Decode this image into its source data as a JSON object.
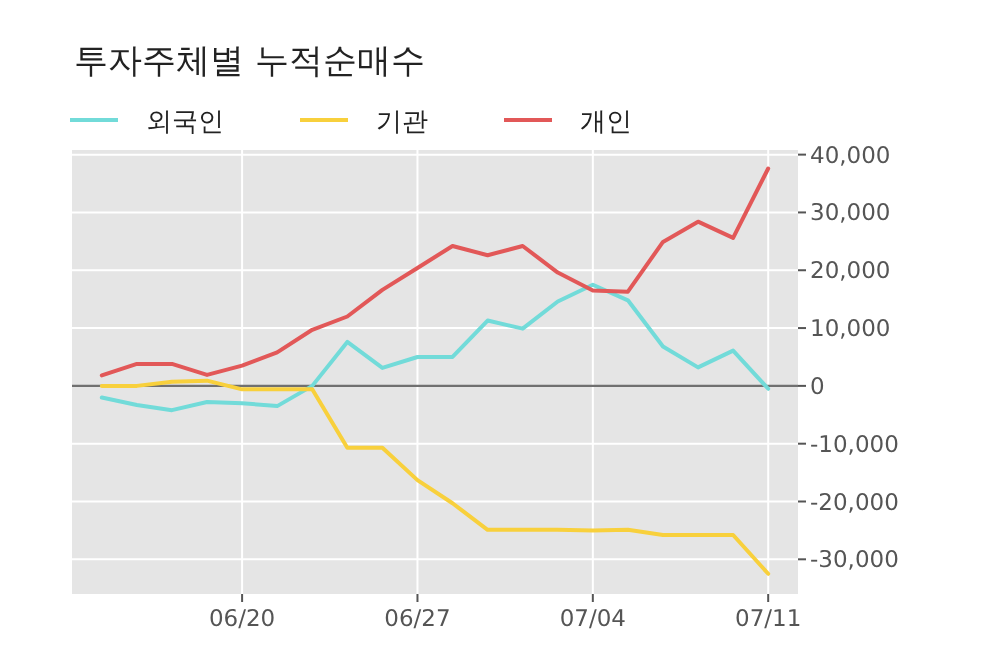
{
  "chart_data": {
    "type": "line",
    "title": "투자주체별 누적순매수",
    "categories": [
      null,
      null,
      null,
      null,
      "06/20",
      null,
      null,
      null,
      null,
      "06/27",
      null,
      null,
      null,
      null,
      "07/04",
      null,
      null,
      null,
      null,
      "07/11"
    ],
    "series": [
      {
        "name": "외국인",
        "color": "#72dbd9",
        "values": [
          -2000,
          -3300,
          -4200,
          -2800,
          -3000,
          -3500,
          0,
          7600,
          3100,
          5000,
          5000,
          11300,
          9900,
          14600,
          17500,
          14800,
          6800,
          3200,
          6100,
          -500
        ]
      },
      {
        "name": "기관",
        "color": "#f8d03c",
        "values": [
          0,
          0,
          700,
          900,
          -600,
          -600,
          -600,
          -10700,
          -10700,
          -16300,
          -20300,
          -24900,
          -24900,
          -24900,
          -25000,
          -24900,
          -25800,
          -25800,
          -25800,
          -32500
        ]
      },
      {
        "name": "개인",
        "color": "#e25858",
        "values": [
          1800,
          3800,
          3800,
          1900,
          3500,
          5800,
          9700,
          12000,
          16600,
          20400,
          24200,
          22600,
          24200,
          19600,
          16500,
          16300,
          24900,
          28400,
          25600,
          37600
        ]
      }
    ],
    "ylim": [
      -36000,
      40800
    ],
    "yticks": [
      {
        "value": 40000,
        "label": "40,000"
      },
      {
        "value": 30000,
        "label": "30,000"
      },
      {
        "value": 20000,
        "label": "20,000"
      },
      {
        "value": 10000,
        "label": "10,000"
      },
      0,
      {
        "value": -10000,
        "label": "-10,000"
      },
      {
        "value": -20000,
        "label": "-20,000"
      },
      {
        "value": -30000,
        "label": "-30,000"
      }
    ],
    "ref_lines": [
      {
        "axis": "y",
        "value": 0,
        "color": "#707070"
      }
    ],
    "grid": true,
    "legend": "top left",
    "marker": "none",
    "line_style": "solid"
  }
}
